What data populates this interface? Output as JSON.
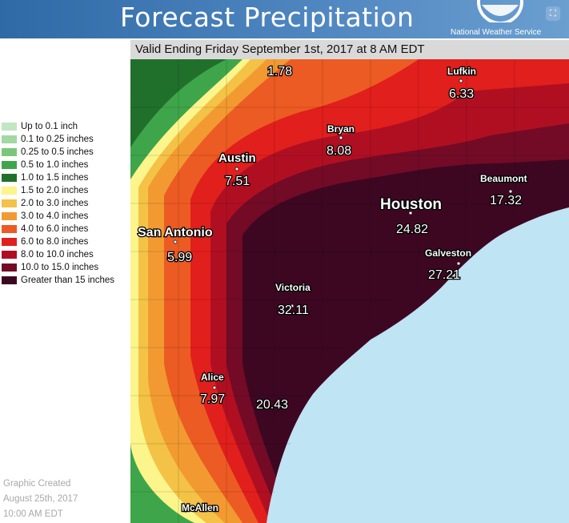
{
  "header": {
    "title": "Forecast Precipitation",
    "agency": "National Weather Service"
  },
  "valid_text": "Valid Ending Friday September 1st, 2017 at 8 AM EDT",
  "legend": [
    {
      "label": "Up to 0.1 inch",
      "color": "#c2e6c2"
    },
    {
      "label": "0.1 to 0.25 inches",
      "color": "#a2d8a2"
    },
    {
      "label": "0.25 to 0.5 inches",
      "color": "#7cc67c"
    },
    {
      "label": "0.5 to 1.0 inches",
      "color": "#3fa54a"
    },
    {
      "label": "1.0 to 1.5 inches",
      "color": "#20702c"
    },
    {
      "label": "1.5 to 2.0 inches",
      "color": "#fbf58b"
    },
    {
      "label": "2.0 to 3.0 inches",
      "color": "#f3c246"
    },
    {
      "label": "3.0 to 4.0 inches",
      "color": "#f29a31"
    },
    {
      "label": "4.0 to 6.0 inches",
      "color": "#ec5b23"
    },
    {
      "label": "6.0 to 8.0 inches",
      "color": "#e11f1c"
    },
    {
      "label": "8.0 to 10.0 inches",
      "color": "#b00f22"
    },
    {
      "label": "10.0 to 15.0 inches",
      "color": "#730b26"
    },
    {
      "label": "Greater than 15 inches",
      "color": "#3d0722"
    }
  ],
  "cities": [
    {
      "name": "Lufkin",
      "value": "6.33"
    },
    {
      "name": "Bryan",
      "value": "8.08"
    },
    {
      "name": "Austin",
      "value": "7.51"
    },
    {
      "name": "Beaumont",
      "value": "17.32"
    },
    {
      "name": "Houston",
      "value": "24.82"
    },
    {
      "name": "San Antonio",
      "value": "5.99"
    },
    {
      "name": "Galveston",
      "value": "27.21"
    },
    {
      "name": "Victoria",
      "value": "32.11"
    },
    {
      "name": "Alice",
      "value": "7.97"
    },
    {
      "name": "McAllen",
      "value": ""
    }
  ],
  "extra_values": {
    "north": "1.78",
    "coast": "20.43"
  },
  "credit": {
    "line1": "Graphic Created",
    "line2": "August 25th, 2017",
    "line3": "10:00 AM EDT"
  },
  "colors": {
    "gulf_water": "#bfe4f4",
    "header_blue": "#4a80bb"
  }
}
